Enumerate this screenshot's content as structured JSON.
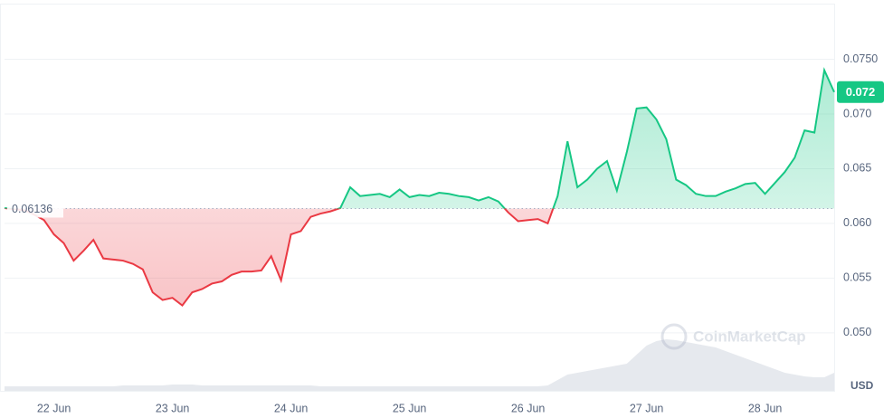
{
  "chart_data": {
    "type": "line",
    "categories": [
      null,
      null,
      null,
      null,
      null,
      "22 Jun",
      null,
      null,
      null,
      null,
      null,
      null,
      null,
      null,
      null,
      null,
      null,
      "23 Jun",
      null,
      null,
      null,
      null,
      null,
      null,
      null,
      null,
      null,
      null,
      null,
      "24 Jun",
      null,
      null,
      null,
      null,
      null,
      null,
      null,
      null,
      null,
      null,
      null,
      "25 Jun",
      null,
      null,
      null,
      null,
      null,
      null,
      null,
      null,
      null,
      null,
      null,
      "26 Jun",
      null,
      null,
      null,
      null,
      null,
      null,
      null,
      null,
      null,
      null,
      null,
      "27 Jun",
      null,
      null,
      null,
      null,
      null,
      null,
      null,
      null,
      null,
      null,
      null,
      "28 Jun",
      null,
      null,
      null,
      null,
      null,
      null,
      null
    ],
    "values": [
      0.0614,
      0.0613,
      0.0612,
      0.0608,
      0.0603,
      0.059,
      0.0582,
      0.0566,
      0.0575,
      0.0585,
      0.0568,
      0.0567,
      0.0566,
      0.0563,
      0.0558,
      0.0537,
      0.053,
      0.0532,
      0.0525,
      0.0537,
      0.054,
      0.0545,
      0.0547,
      0.0553,
      0.0556,
      0.0556,
      0.0557,
      0.057,
      0.0548,
      0.059,
      0.0593,
      0.0606,
      0.0609,
      0.0611,
      0.0614,
      0.0633,
      0.0625,
      0.0626,
      0.0627,
      0.0624,
      0.0631,
      0.0624,
      0.0626,
      0.0625,
      0.0628,
      0.0627,
      0.0625,
      0.0624,
      0.0621,
      0.0624,
      0.062,
      0.061,
      0.0602,
      0.0603,
      0.0604,
      0.06,
      0.0625,
      0.0675,
      0.0633,
      0.064,
      0.065,
      0.0657,
      0.063,
      0.0665,
      0.0705,
      0.0706,
      0.0695,
      0.0677,
      0.064,
      0.0635,
      0.0627,
      0.0625,
      0.0625,
      0.0629,
      0.0632,
      0.0636,
      0.0637,
      0.0627,
      0.0637,
      0.0647,
      0.066,
      0.0685,
      0.0683,
      0.074,
      0.072
    ],
    "volume": [
      5,
      5,
      5,
      5,
      5,
      5,
      5,
      5,
      5,
      5,
      5,
      5,
      6,
      6,
      6,
      6,
      6,
      7,
      7,
      7,
      6,
      6,
      6,
      6,
      6,
      6,
      6,
      6,
      6,
      6,
      6,
      6,
      5,
      5,
      5,
      5,
      5,
      5,
      5,
      5,
      5,
      5,
      5,
      5,
      5,
      5,
      5,
      5,
      5,
      5,
      5,
      5,
      5,
      5,
      5,
      6,
      12,
      18,
      20,
      22,
      24,
      26,
      28,
      30,
      40,
      50,
      55,
      57,
      56,
      54,
      52,
      50,
      48,
      44,
      40,
      36,
      32,
      28,
      24,
      20,
      18,
      16,
      15,
      15,
      20
    ],
    "baseline": 0.06136,
    "baseline_label": "0.06136",
    "current_price": "0.072",
    "currency": "USD",
    "watermark": "CoinMarketCap",
    "up_color": "#16c784",
    "down_color": "#ea3943",
    "ylim": [
      0.0447,
      0.08
    ],
    "yticks": [
      {
        "value": 0.05,
        "label": "0.050"
      },
      {
        "value": 0.055,
        "label": "0.055"
      },
      {
        "value": 0.06,
        "label": "0.060"
      },
      {
        "value": 0.065,
        "label": "0.065"
      },
      {
        "value": 0.07,
        "label": "0.070"
      },
      {
        "value": 0.075,
        "label": "0.0750"
      }
    ],
    "grid": true
  }
}
